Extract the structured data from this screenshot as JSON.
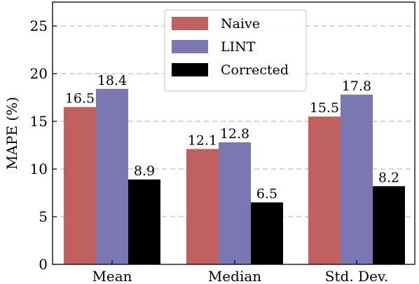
{
  "chart_data": {
    "type": "bar",
    "categories": [
      "Mean",
      "Median",
      "Std. Dev."
    ],
    "series": [
      {
        "name": "Naive",
        "values": [
          16.5,
          12.1,
          15.5
        ],
        "color": "#c0605f"
      },
      {
        "name": "LINT",
        "values": [
          18.4,
          12.8,
          17.8
        ],
        "color": "#7b77b2"
      },
      {
        "name": "Corrected",
        "values": [
          8.9,
          6.5,
          8.2
        ],
        "color": "#000000"
      }
    ],
    "value_labels": [
      [
        "16.5",
        "12.1",
        "15.5"
      ],
      [
        "18.4",
        "12.8",
        "17.8"
      ],
      [
        "8.9",
        "6.5",
        "8.2"
      ]
    ],
    "ylabel": "MAPE (%)",
    "xlabel": "",
    "ylim": [
      0,
      27.5
    ],
    "yticks": [
      0,
      5,
      10,
      15,
      20,
      25
    ],
    "ytick_labels": [
      "0",
      "5",
      "10",
      "15",
      "20",
      "25"
    ],
    "grid": "horizontal dashed",
    "legend_position": "top-center"
  }
}
